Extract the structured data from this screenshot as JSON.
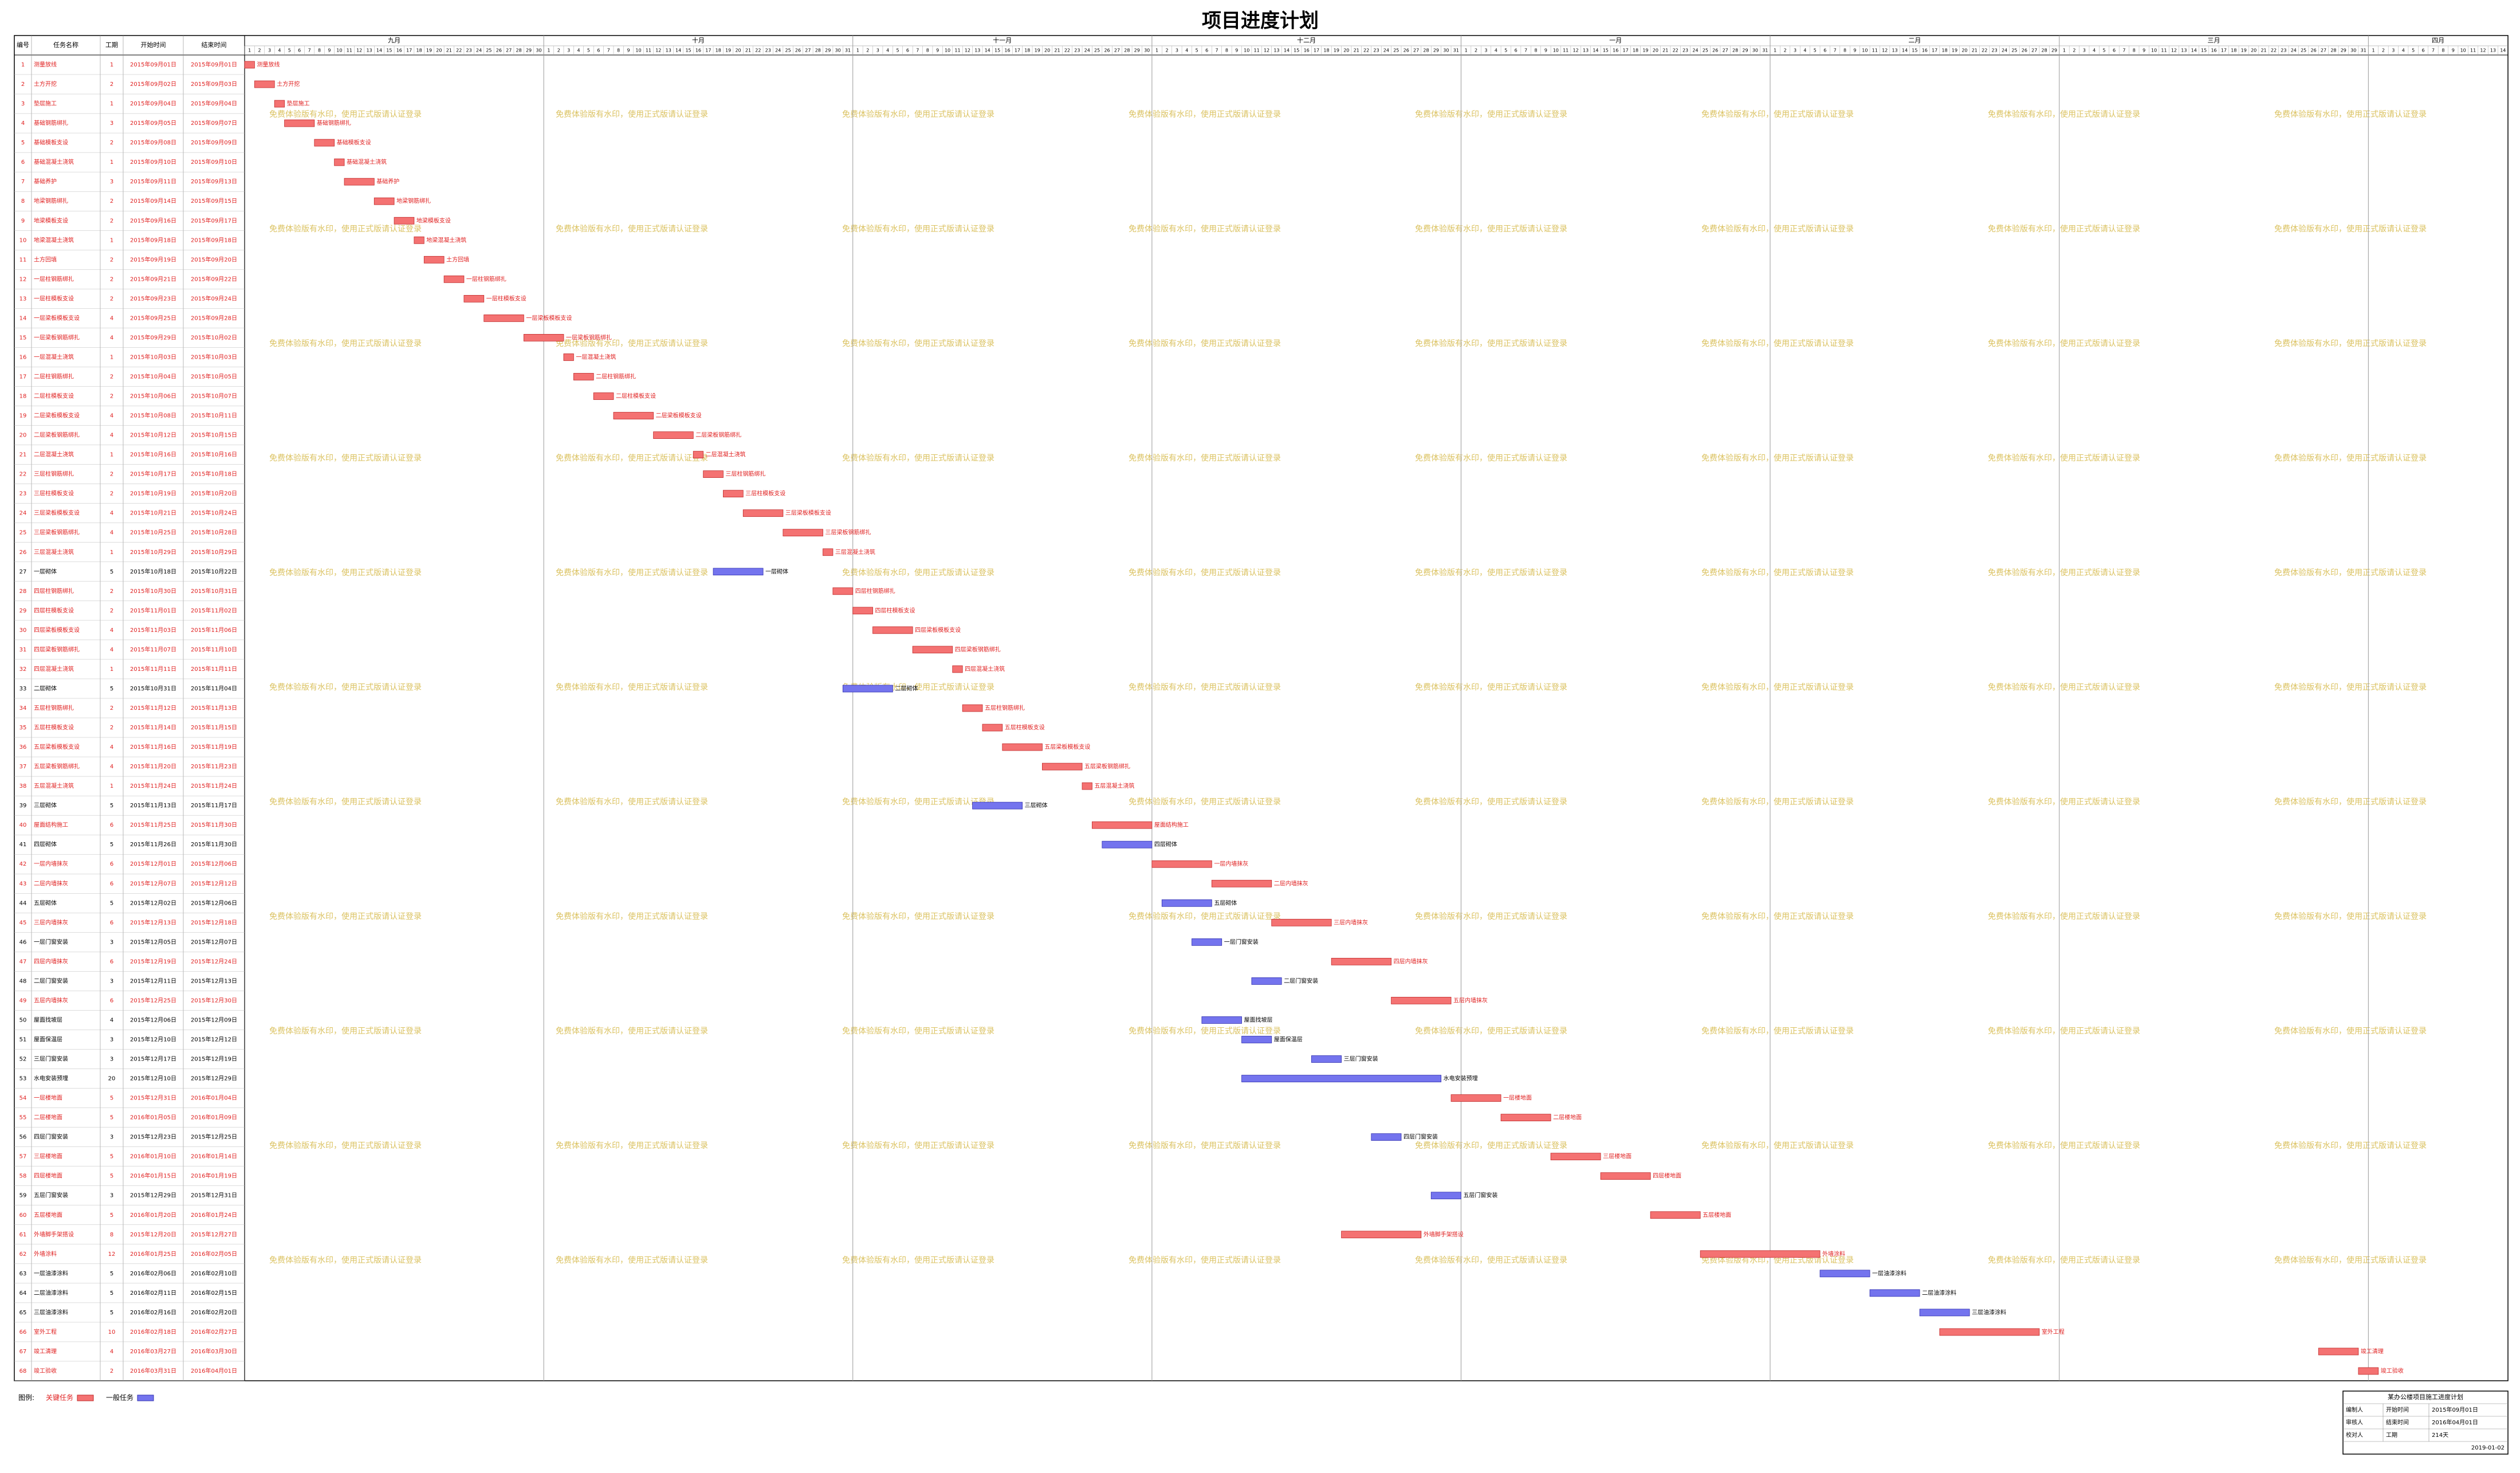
{
  "title": "项目进度计划",
  "table": {
    "columns": [
      "编号",
      "任务名称",
      "工期",
      "开始时间",
      "结束时间"
    ],
    "rows": [
      [
        1,
        "测量放线",
        1,
        "2015年09月01日",
        "2015年09月01日",
        true
      ],
      [
        2,
        "土方开挖",
        2,
        "2015年09月02日",
        "2015年09月03日",
        true
      ],
      [
        3,
        "垫层施工",
        1,
        "2015年09月04日",
        "2015年09月04日",
        true
      ],
      [
        4,
        "基础钢筋绑扎",
        3,
        "2015年09月05日",
        "2015年09月07日",
        true
      ],
      [
        5,
        "基础模板支设",
        2,
        "2015年09月08日",
        "2015年09月09日",
        true
      ],
      [
        6,
        "基础混凝土浇筑",
        1,
        "2015年09月10日",
        "2015年09月10日",
        true
      ],
      [
        7,
        "基础养护",
        3,
        "2015年09月11日",
        "2015年09月13日",
        true
      ],
      [
        8,
        "地梁钢筋绑扎",
        2,
        "2015年09月14日",
        "2015年09月15日",
        true
      ],
      [
        9,
        "地梁模板支设",
        2,
        "2015年09月16日",
        "2015年09月17日",
        true
      ],
      [
        10,
        "地梁混凝土浇筑",
        1,
        "2015年09月18日",
        "2015年09月18日",
        true
      ],
      [
        11,
        "土方回填",
        2,
        "2015年09月19日",
        "2015年09月20日",
        true
      ],
      [
        12,
        "一层柱钢筋绑扎",
        2,
        "2015年09月21日",
        "2015年09月22日",
        true
      ],
      [
        13,
        "一层柱模板支设",
        2,
        "2015年09月23日",
        "2015年09月24日",
        true
      ],
      [
        14,
        "一层梁板模板支设",
        4,
        "2015年09月25日",
        "2015年09月28日",
        true
      ],
      [
        15,
        "一层梁板钢筋绑扎",
        4,
        "2015年09月29日",
        "2015年10月02日",
        true
      ],
      [
        16,
        "一层混凝土浇筑",
        1,
        "2015年10月03日",
        "2015年10月03日",
        true
      ],
      [
        17,
        "二层柱钢筋绑扎",
        2,
        "2015年10月04日",
        "2015年10月05日",
        true
      ],
      [
        18,
        "二层柱模板支设",
        2,
        "2015年10月06日",
        "2015年10月07日",
        true
      ],
      [
        19,
        "二层梁板模板支设",
        4,
        "2015年10月08日",
        "2015年10月11日",
        true
      ],
      [
        20,
        "二层梁板钢筋绑扎",
        4,
        "2015年10月12日",
        "2015年10月15日",
        true
      ],
      [
        21,
        "二层混凝土浇筑",
        1,
        "2015年10月16日",
        "2015年10月16日",
        true
      ],
      [
        22,
        "三层柱钢筋绑扎",
        2,
        "2015年10月17日",
        "2015年10月18日",
        true
      ],
      [
        23,
        "三层柱模板支设",
        2,
        "2015年10月19日",
        "2015年10月20日",
        true
      ],
      [
        24,
        "三层梁板模板支设",
        4,
        "2015年10月21日",
        "2015年10月24日",
        true
      ],
      [
        25,
        "三层梁板钢筋绑扎",
        4,
        "2015年10月25日",
        "2015年10月28日",
        true
      ],
      [
        26,
        "三层混凝土浇筑",
        1,
        "2015年10月29日",
        "2015年10月29日",
        true
      ],
      [
        27,
        "一层砌体",
        5,
        "2015年10月18日",
        "2015年10月22日",
        false
      ],
      [
        28,
        "四层柱钢筋绑扎",
        2,
        "2015年10月30日",
        "2015年10月31日",
        true
      ],
      [
        29,
        "四层柱模板支设",
        2,
        "2015年11月01日",
        "2015年11月02日",
        true
      ],
      [
        30,
        "四层梁板模板支设",
        4,
        "2015年11月03日",
        "2015年11月06日",
        true
      ],
      [
        31,
        "四层梁板钢筋绑扎",
        4,
        "2015年11月07日",
        "2015年11月10日",
        true
      ],
      [
        32,
        "四层混凝土浇筑",
        1,
        "2015年11月11日",
        "2015年11月11日",
        true
      ],
      [
        33,
        "二层砌体",
        5,
        "2015年10月31日",
        "2015年11月04日",
        false
      ],
      [
        34,
        "五层柱钢筋绑扎",
        2,
        "2015年11月12日",
        "2015年11月13日",
        true
      ],
      [
        35,
        "五层柱模板支设",
        2,
        "2015年11月14日",
        "2015年11月15日",
        true
      ],
      [
        36,
        "五层梁板模板支设",
        4,
        "2015年11月16日",
        "2015年11月19日",
        true
      ],
      [
        37,
        "五层梁板钢筋绑扎",
        4,
        "2015年11月20日",
        "2015年11月23日",
        true
      ],
      [
        38,
        "五层混凝土浇筑",
        1,
        "2015年11月24日",
        "2015年11月24日",
        true
      ],
      [
        39,
        "三层砌体",
        5,
        "2015年11月13日",
        "2015年11月17日",
        false
      ],
      [
        40,
        "屋面结构施工",
        6,
        "2015年11月25日",
        "2015年11月30日",
        true
      ],
      [
        41,
        "四层砌体",
        5,
        "2015年11月26日",
        "2015年11月30日",
        false
      ],
      [
        42,
        "一层内墙抹灰",
        6,
        "2015年12月01日",
        "2015年12月06日",
        true
      ],
      [
        43,
        "二层内墙抹灰",
        6,
        "2015年12月07日",
        "2015年12月12日",
        true
      ],
      [
        44,
        "五层砌体",
        5,
        "2015年12月02日",
        "2015年12月06日",
        false
      ],
      [
        45,
        "三层内墙抹灰",
        6,
        "2015年12月13日",
        "2015年12月18日",
        true
      ],
      [
        46,
        "一层门窗安装",
        3,
        "2015年12月05日",
        "2015年12月07日",
        false
      ],
      [
        47,
        "四层内墙抹灰",
        6,
        "2015年12月19日",
        "2015年12月24日",
        true
      ],
      [
        48,
        "二层门窗安装",
        3,
        "2015年12月11日",
        "2015年12月13日",
        false
      ],
      [
        49,
        "五层内墙抹灰",
        6,
        "2015年12月25日",
        "2015年12月30日",
        true
      ],
      [
        50,
        "屋面找坡层",
        4,
        "2015年12月06日",
        "2015年12月09日",
        false
      ],
      [
        51,
        "屋面保温层",
        3,
        "2015年12月10日",
        "2015年12月12日",
        false
      ],
      [
        52,
        "三层门窗安装",
        3,
        "2015年12月17日",
        "2015年12月19日",
        false
      ],
      [
        53,
        "水电安装预埋",
        20,
        "2015年12月10日",
        "2015年12月29日",
        false
      ],
      [
        54,
        "一层楼地面",
        5,
        "2015年12月31日",
        "2016年01月04日",
        true
      ],
      [
        55,
        "二层楼地面",
        5,
        "2016年01月05日",
        "2016年01月09日",
        true
      ],
      [
        56,
        "四层门窗安装",
        3,
        "2015年12月23日",
        "2015年12月25日",
        false
      ],
      [
        57,
        "三层楼地面",
        5,
        "2016年01月10日",
        "2016年01月14日",
        true
      ],
      [
        58,
        "四层楼地面",
        5,
        "2016年01月15日",
        "2016年01月19日",
        true
      ],
      [
        59,
        "五层门窗安装",
        3,
        "2015年12月29日",
        "2015年12月31日",
        false
      ],
      [
        60,
        "五层楼地面",
        5,
        "2016年01月20日",
        "2016年01月24日",
        true
      ],
      [
        61,
        "外墙脚手架搭设",
        8,
        "2015年12月20日",
        "2015年12月27日",
        true
      ],
      [
        62,
        "外墙涂料",
        12,
        "2016年01月25日",
        "2016年02月05日",
        true
      ],
      [
        63,
        "一层油漆涂料",
        5,
        "2016年02月06日",
        "2016年02月10日",
        false
      ],
      [
        64,
        "二层油漆涂料",
        5,
        "2016年02月11日",
        "2016年02月15日",
        false
      ],
      [
        65,
        "三层油漆涂料",
        5,
        "2016年02月16日",
        "2016年02月20日",
        false
      ],
      [
        66,
        "室外工程",
        10,
        "2016年02月18日",
        "2016年02月27日",
        true
      ],
      [
        67,
        "竣工清理",
        4,
        "2016年03月27日",
        "2016年03月30日",
        true
      ],
      [
        68,
        "竣工验收",
        2,
        "2016年03月31日",
        "2016年04月01日",
        true
      ]
    ]
  },
  "timeline": {
    "months": [
      {
        "name": "九月",
        "days": [
          1,
          2,
          3,
          4,
          5,
          6,
          7,
          8,
          9,
          10,
          11,
          12,
          13,
          14,
          15,
          16,
          17,
          18,
          19,
          20,
          21,
          22,
          23,
          24,
          25,
          26,
          27,
          28,
          29,
          30
        ]
      },
      {
        "name": "十月",
        "days": [
          1,
          2,
          3,
          4,
          5,
          6,
          7,
          8,
          9,
          10,
          11,
          12,
          13,
          14,
          15,
          16,
          17,
          18,
          19,
          20,
          21,
          22,
          23,
          24,
          25,
          26,
          27,
          28,
          29,
          30,
          31
        ]
      },
      {
        "name": "十一月",
        "days": [
          1,
          2,
          3,
          4,
          5,
          6,
          7,
          8,
          9,
          10,
          11,
          12,
          13,
          14,
          15,
          16,
          17,
          18,
          19,
          20,
          21,
          22,
          23,
          24,
          25,
          26,
          27,
          28,
          29,
          30
        ]
      },
      {
        "name": "十二月",
        "days": [
          1,
          2,
          3,
          4,
          5,
          6,
          7,
          8,
          9,
          10,
          11,
          12,
          13,
          14,
          15,
          16,
          17,
          18,
          19,
          20,
          21,
          22,
          23,
          24,
          25,
          26,
          27,
          28,
          29,
          30,
          31
        ]
      },
      {
        "name": "一月",
        "days": [
          1,
          2,
          3,
          4,
          5,
          6,
          7,
          8,
          9,
          10,
          11,
          12,
          13,
          14,
          15,
          16,
          17,
          18,
          19,
          20,
          21,
          22,
          23,
          24,
          25,
          26,
          27,
          28,
          29,
          30,
          31
        ]
      },
      {
        "name": "二月",
        "days": [
          1,
          2,
          3,
          4,
          5,
          6,
          7,
          8,
          9,
          10,
          11,
          12,
          13,
          14,
          15,
          16,
          17,
          18,
          19,
          20,
          21,
          22,
          23,
          24,
          25,
          26,
          27,
          28,
          29
        ]
      },
      {
        "name": "三月",
        "days": [
          1,
          2,
          3,
          4,
          5,
          6,
          7,
          8,
          9,
          10,
          11,
          12,
          13,
          14,
          15,
          16,
          17,
          18,
          19,
          20,
          21,
          22,
          23,
          24,
          25,
          26,
          27,
          28,
          29,
          30,
          31
        ]
      },
      {
        "name": "四月",
        "days": [
          1,
          2,
          3,
          4,
          5,
          6,
          7,
          8,
          9,
          10,
          11,
          12,
          13,
          14
        ]
      }
    ]
  },
  "legend": {
    "label": "图例:",
    "critical": "关键任务",
    "normal": "一般任务",
    "critical_color": "#f47272",
    "normal_color": "#7474ee"
  },
  "watermark": "免费体验版有水印，使用正式版请认证登录",
  "info": {
    "title": "某办公楼项目施工进度计划",
    "rows": [
      [
        "编制人",
        "开始时间",
        "2015年09月01日"
      ],
      [
        "审核人",
        "结束时间",
        "2016年04月01日"
      ],
      [
        "校对人",
        "工期",
        "214天"
      ]
    ],
    "date": "2019-01-02"
  }
}
